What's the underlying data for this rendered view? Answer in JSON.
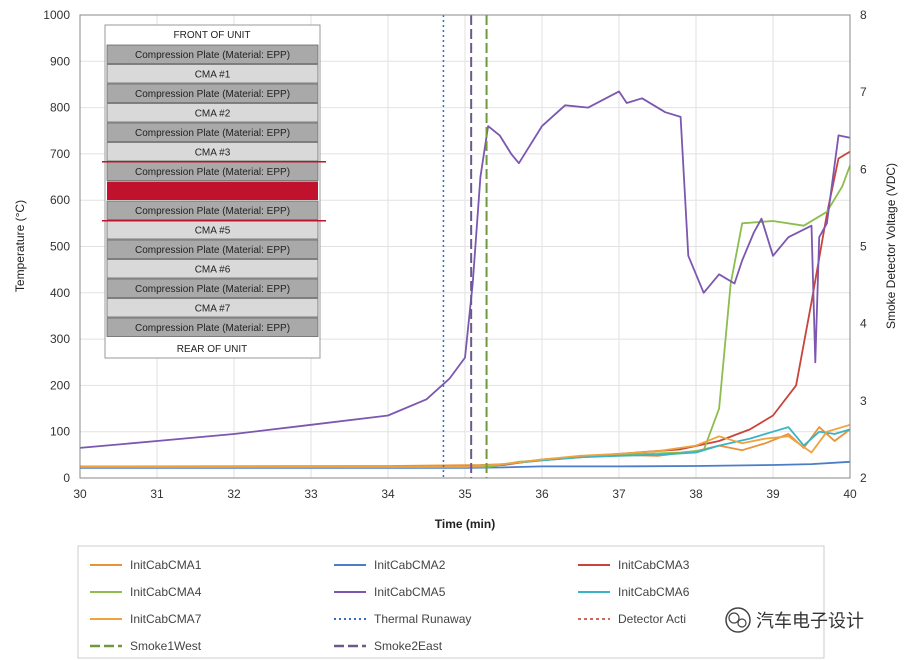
{
  "chart_data": {
    "type": "line",
    "xlabel": "Time (min)",
    "ylabel": "Temperature (°C)",
    "y2label": "Smoke Detector Voltage (VDC)",
    "xlim": [
      30,
      40
    ],
    "ylim": [
      0,
      1000
    ],
    "y2lim": [
      2,
      8
    ],
    "xticks": [
      "30",
      "31",
      "32",
      "33",
      "34",
      "35",
      "36",
      "37",
      "38",
      "39",
      "40"
    ],
    "yticks": [
      "0",
      "100",
      "200",
      "300",
      "400",
      "500",
      "600",
      "700",
      "800",
      "900",
      "1000"
    ],
    "y2ticks": [
      "2",
      "3",
      "4",
      "5",
      "6",
      "7",
      "8"
    ],
    "grid": true,
    "legend_position": "bottom",
    "series": [
      {
        "name": "InitCabCMA1",
        "color": "#e8923a",
        "dash": "solid",
        "x": [
          30,
          34,
          35.2,
          35.5,
          36,
          36.5,
          37,
          37.5,
          38,
          38.3,
          38.6,
          38.9,
          39.2,
          39.4,
          39.6,
          39.8,
          40
        ],
        "y": [
          25,
          26,
          28,
          30,
          38,
          45,
          50,
          48,
          58,
          70,
          60,
          75,
          95,
          65,
          110,
          80,
          105
        ]
      },
      {
        "name": "InitCabCMA2",
        "color": "#4a7ec7",
        "dash": "solid",
        "x": [
          30,
          35,
          35.5,
          36,
          37,
          38,
          39,
          39.5,
          40
        ],
        "y": [
          22,
          22,
          23,
          25,
          25,
          26,
          28,
          30,
          35
        ]
      },
      {
        "name": "InitCabCMA3",
        "color": "#c8443c",
        "dash": "solid",
        "x": [
          30,
          35,
          35.5,
          36,
          37,
          37.8,
          38.3,
          38.7,
          39,
          39.3,
          39.5,
          39.7,
          39.85,
          40
        ],
        "y": [
          24,
          24,
          28,
          40,
          52,
          62,
          80,
          105,
          135,
          200,
          380,
          570,
          690,
          705
        ]
      },
      {
        "name": "InitCabCMA4",
        "color": "#8cbd4e",
        "dash": "solid",
        "x": [
          30,
          35.3,
          35.7,
          36.5,
          37,
          37.8,
          38.1,
          38.3,
          38.45,
          38.6,
          39,
          39.4,
          39.7,
          39.9,
          40
        ],
        "y": [
          24,
          24,
          35,
          45,
          50,
          55,
          60,
          150,
          420,
          550,
          555,
          545,
          575,
          630,
          675
        ]
      },
      {
        "name": "InitCabCMA5",
        "color": "#7b57b0",
        "dash": "solid",
        "x": [
          30,
          31,
          32,
          33,
          34,
          34.5,
          34.8,
          35,
          35.1,
          35.2,
          35.3,
          35.45,
          35.6,
          35.7,
          36,
          36.3,
          36.6,
          37,
          37.1,
          37.3,
          37.6,
          37.8,
          37.9,
          38.1,
          38.3,
          38.5,
          38.6,
          38.75,
          38.85,
          39,
          39.2,
          39.5,
          39.55,
          39.6,
          39.7,
          39.85,
          40
        ],
        "y": [
          65,
          80,
          95,
          115,
          135,
          170,
          215,
          260,
          420,
          650,
          760,
          740,
          700,
          680,
          760,
          805,
          800,
          835,
          810,
          820,
          790,
          780,
          480,
          400,
          440,
          420,
          470,
          530,
          560,
          480,
          520,
          545,
          250,
          520,
          550,
          740,
          735
        ]
      },
      {
        "name": "InitCabCMA6",
        "color": "#3ab3c8",
        "dash": "solid",
        "x": [
          30,
          35,
          35.5,
          36,
          36.5,
          37,
          37.5,
          38,
          38.3,
          38.7,
          39,
          39.2,
          39.4,
          39.6,
          39.8,
          40
        ],
        "y": [
          24,
          24,
          30,
          38,
          45,
          48,
          50,
          55,
          70,
          85,
          100,
          110,
          70,
          100,
          95,
          105
        ]
      },
      {
        "name": "InitCabCMA7",
        "color": "#f0a23c",
        "dash": "solid",
        "x": [
          30,
          35,
          35.5,
          36,
          36.5,
          37,
          37.5,
          38,
          38.3,
          38.6,
          38.9,
          39.2,
          39.5,
          39.7,
          40
        ],
        "y": [
          24,
          24,
          30,
          40,
          48,
          52,
          58,
          70,
          90,
          75,
          85,
          90,
          55,
          100,
          115
        ]
      },
      {
        "name": "Thermal Runaway",
        "color": "#2f6fc4",
        "dash": "2,3",
        "vline": 34.72
      },
      {
        "name": "Detector Activation",
        "color": "#d06a5a",
        "dash": "3,3",
        "vline": null
      },
      {
        "name": "Smoke1West",
        "color": "#6e9a3c",
        "dash": "10,4",
        "vline": 35.28
      },
      {
        "name": "Smoke2East",
        "color": "#6a5a8c",
        "dash": "10,4",
        "vline": 35.08
      }
    ]
  },
  "inset": {
    "top_label": "FRONT OF UNIT",
    "bottom_label": "REAR OF UNIT",
    "rows": [
      "Compression Plate (Material: EPP)",
      "CMA #1",
      "Compression Plate (Material: EPP)",
      "CMA #2",
      "Compression Plate (Material: EPP)",
      "CMA #3",
      "Compression Plate (Material: EPP)",
      "",
      "Compression Plate (Material: EPP)",
      "CMA #5",
      "Compression Plate (Material: EPP)",
      "CMA #6",
      "Compression Plate (Material: EPP)",
      "CMA #7",
      "Compression Plate (Material: EPP)"
    ],
    "highlight_color": "#c0122c"
  },
  "legend": {
    "rows": [
      [
        {
          "label": "InitCabCMA1",
          "color": "#e8923a",
          "dash": "solid"
        },
        {
          "label": "InitCabCMA2",
          "color": "#4a7ec7",
          "dash": "solid"
        },
        {
          "label": "InitCabCMA3",
          "color": "#c8443c",
          "dash": "solid"
        }
      ],
      [
        {
          "label": "InitCabCMA4",
          "color": "#8cbd4e",
          "dash": "solid"
        },
        {
          "label": "InitCabCMA5",
          "color": "#7b57b0",
          "dash": "solid"
        },
        {
          "label": "InitCabCMA6",
          "color": "#3ab3c8",
          "dash": "solid"
        }
      ],
      [
        {
          "label": "InitCabCMA7",
          "color": "#f0a23c",
          "dash": "solid"
        },
        {
          "label": "Thermal Runaway",
          "color": "#2f6fc4",
          "dash": "2,3"
        },
        {
          "label": "Detector Acti",
          "color": "#d06a5a",
          "dash": "3,3"
        }
      ],
      [
        {
          "label": "Smoke1West",
          "color": "#6e9a3c",
          "dash": "10,4"
        },
        {
          "label": "Smoke2East",
          "color": "#6a5a8c",
          "dash": "10,4"
        }
      ]
    ]
  },
  "watermark": {
    "text": "汽车电子设计",
    "icon": "wechat-icon"
  }
}
